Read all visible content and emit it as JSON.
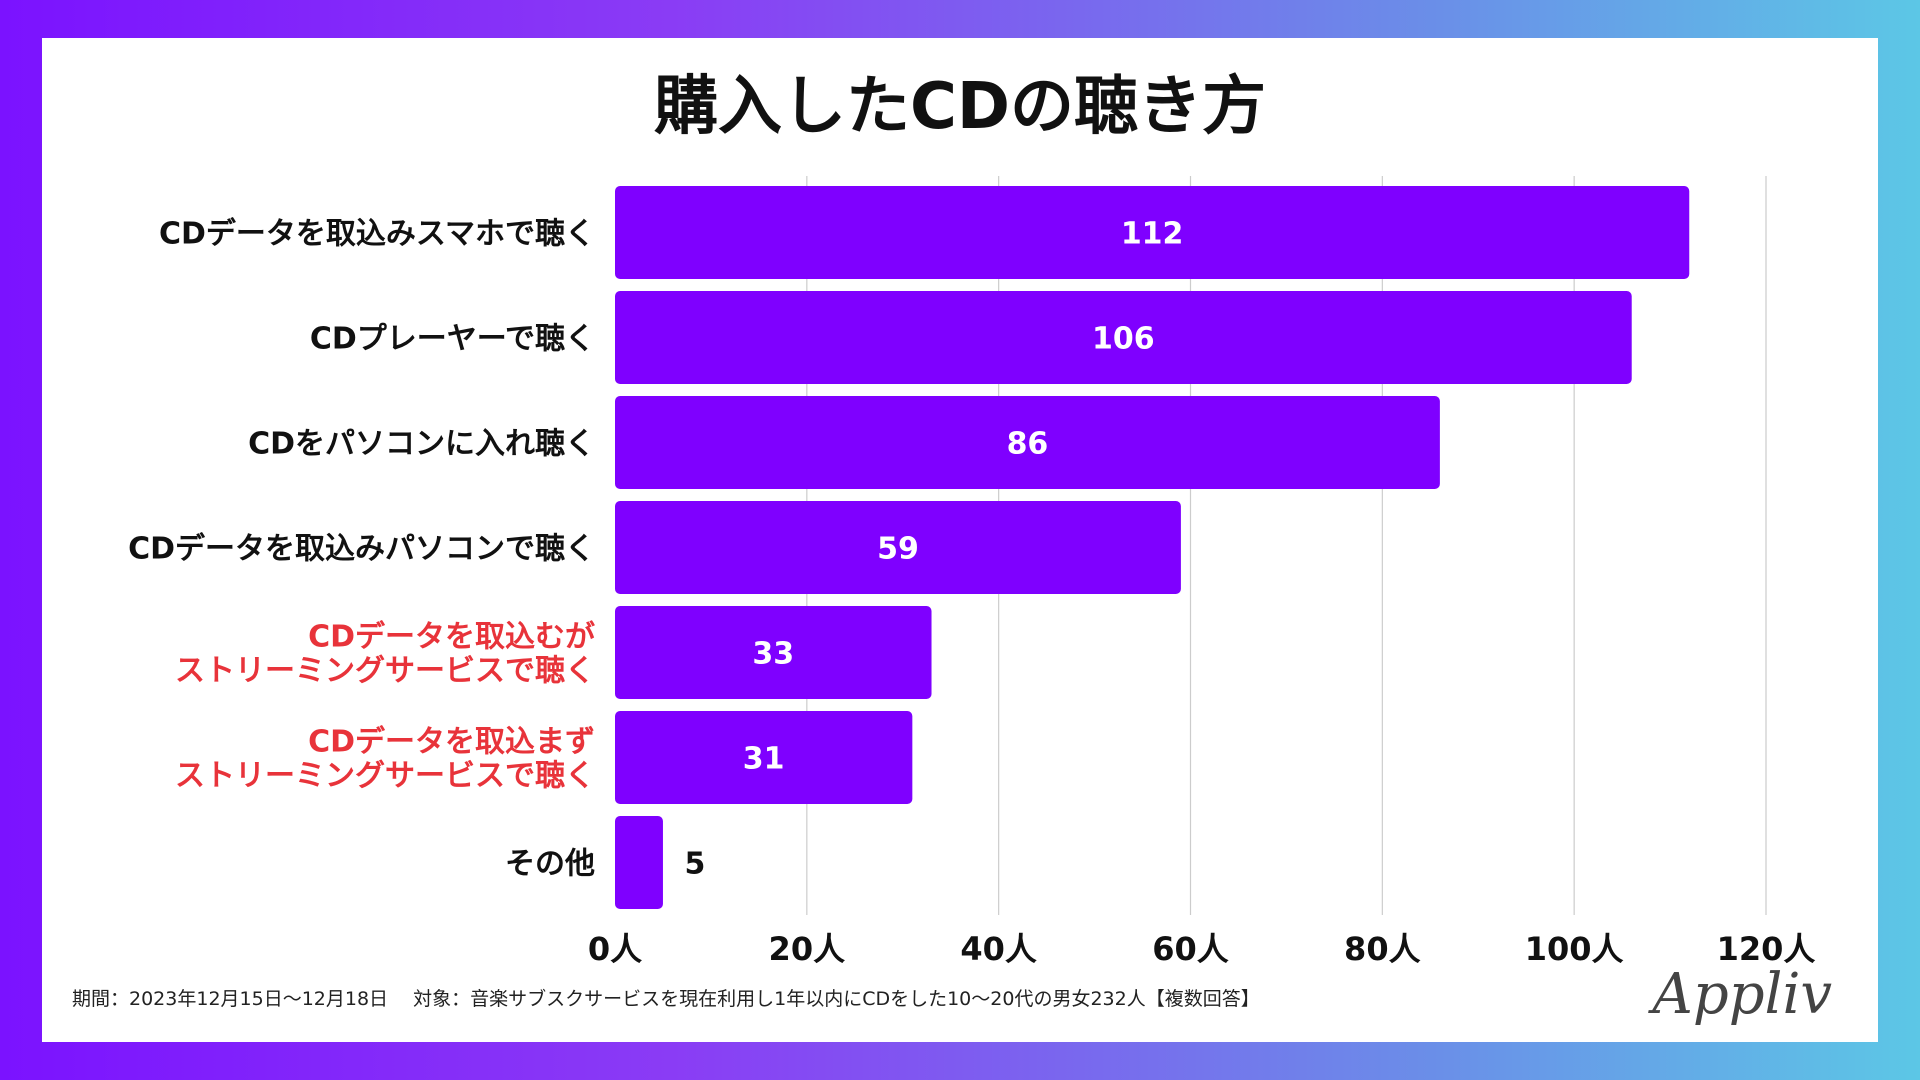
{
  "chart_data": {
    "type": "bar",
    "orientation": "horizontal",
    "title": "購入したCDの聴き方",
    "categories": [
      "CDデータを取込みスマホで聴く",
      "CDプレーヤーで聴く",
      "CDをパソコンに入れ聴く",
      "CDデータを取込みパソコンで聴く",
      "CDデータを取込むが\nストリーミングサービスで聴く",
      "CDデータを取込まず\nストリーミングサービスで聴く",
      "その他"
    ],
    "highlighted": [
      false,
      false,
      false,
      false,
      true,
      true,
      false
    ],
    "values": [
      112,
      106,
      86,
      59,
      33,
      31,
      5
    ],
    "xlim": [
      0,
      120
    ],
    "xticks": [
      0,
      20,
      40,
      60,
      80,
      100,
      120
    ],
    "tick_suffix": "人",
    "grid": true,
    "colors": {
      "bar": "#7f00ff",
      "label": "#111111",
      "highlight_label": "#e8333a",
      "grid": "#cccccc"
    }
  },
  "footnote": "期間：2023年12月15日〜12月18日　 対象：音楽サブスクサービスを現在利用し1年以内にCDをした10〜20代の男女232人【複数回答】",
  "logo_text": "Appliv"
}
